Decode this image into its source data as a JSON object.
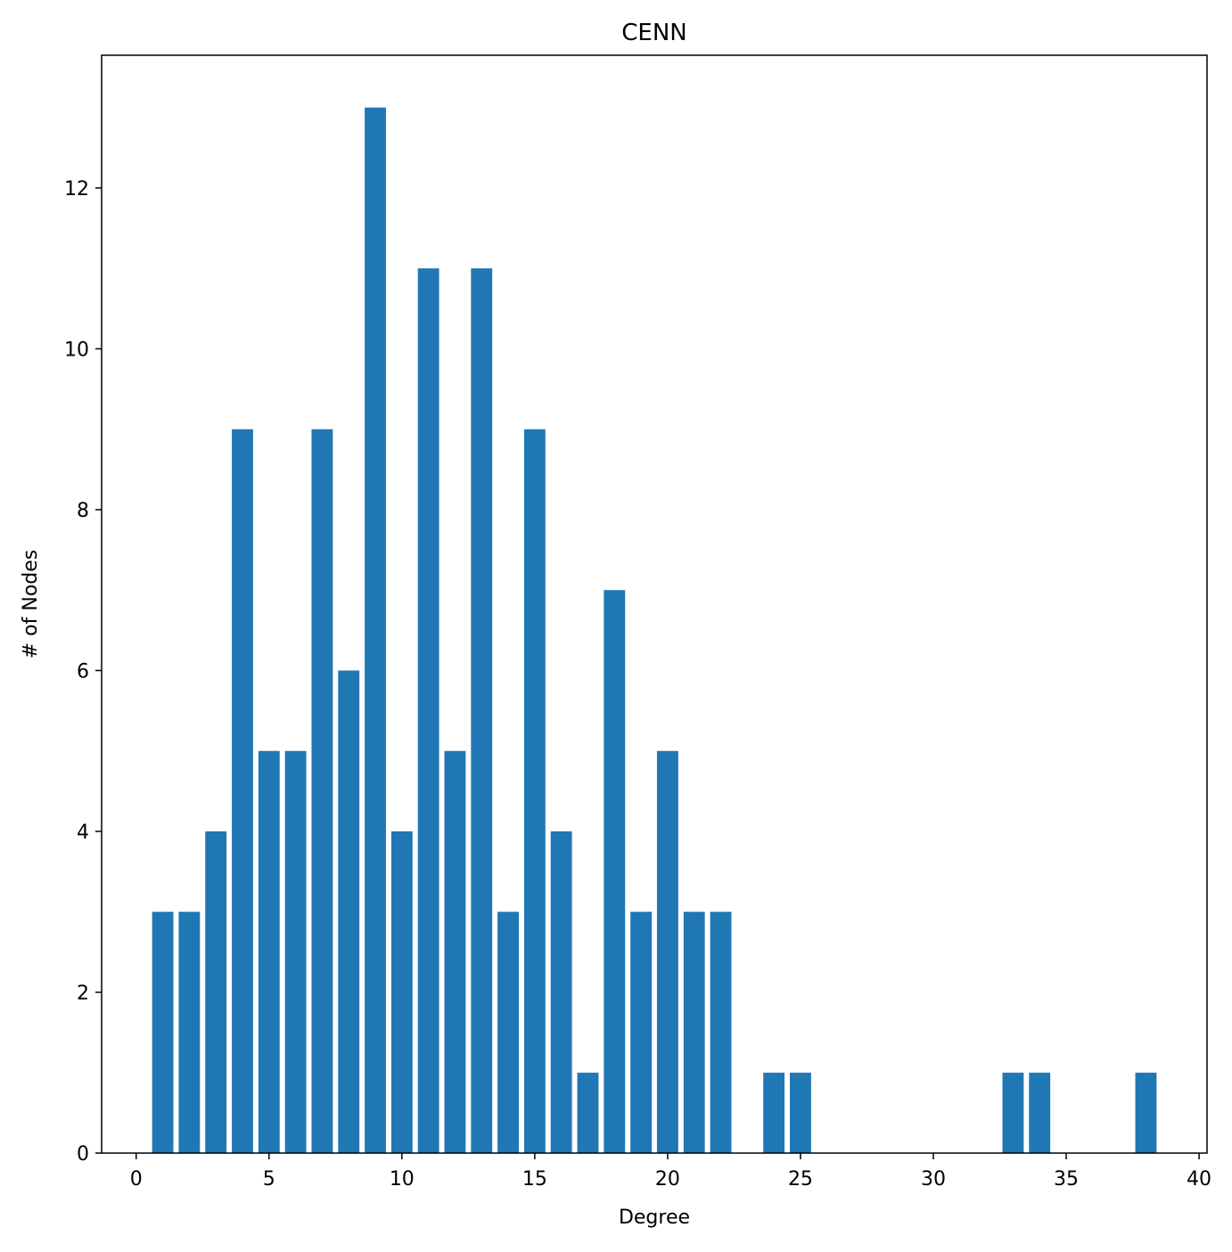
{
  "chart_data": {
    "type": "bar",
    "title": "CENN",
    "xlabel": "Degree",
    "ylabel": "# of Nodes",
    "xlim": [
      -1.3,
      40.3
    ],
    "ylim": [
      0,
      13.65
    ],
    "x_ticks": [
      0,
      5,
      10,
      15,
      20,
      25,
      30,
      35,
      40
    ],
    "y_ticks": [
      0,
      2,
      4,
      6,
      8,
      10,
      12
    ],
    "grid": false,
    "legend": "none",
    "bar_color": "#1f77b4",
    "points": [
      {
        "x": 1,
        "y": 3
      },
      {
        "x": 2,
        "y": 3
      },
      {
        "x": 3,
        "y": 4
      },
      {
        "x": 4,
        "y": 9
      },
      {
        "x": 5,
        "y": 5
      },
      {
        "x": 6,
        "y": 5
      },
      {
        "x": 7,
        "y": 9
      },
      {
        "x": 8,
        "y": 6
      },
      {
        "x": 9,
        "y": 13
      },
      {
        "x": 10,
        "y": 4
      },
      {
        "x": 11,
        "y": 11
      },
      {
        "x": 12,
        "y": 5
      },
      {
        "x": 13,
        "y": 11
      },
      {
        "x": 14,
        "y": 3
      },
      {
        "x": 15,
        "y": 9
      },
      {
        "x": 16,
        "y": 4
      },
      {
        "x": 17,
        "y": 1
      },
      {
        "x": 18,
        "y": 7
      },
      {
        "x": 19,
        "y": 3
      },
      {
        "x": 20,
        "y": 5
      },
      {
        "x": 21,
        "y": 3
      },
      {
        "x": 22,
        "y": 3
      },
      {
        "x": 24,
        "y": 1
      },
      {
        "x": 25,
        "y": 1
      },
      {
        "x": 33,
        "y": 1
      },
      {
        "x": 34,
        "y": 1
      },
      {
        "x": 38,
        "y": 1
      }
    ]
  }
}
